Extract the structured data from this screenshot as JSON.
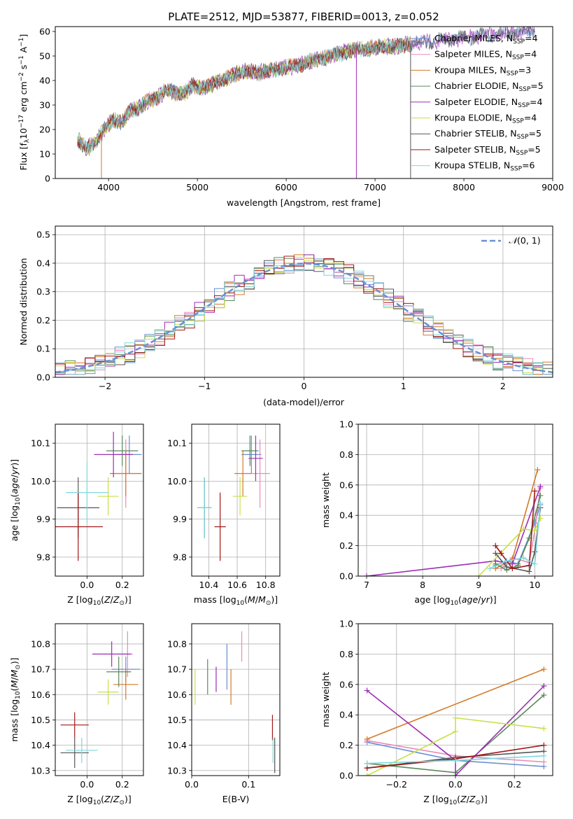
{
  "figure_title": "PLATE=2512, MJD=53877, FIBERID=0013, z=0.052",
  "colors": [
    "#6a8fd4",
    "#e88bb8",
    "#d47a28",
    "#5a8a5a",
    "#9b2fb5",
    "#c8e04a",
    "#555555",
    "#a01818",
    "#7fd8de"
  ],
  "chart_data": [
    {
      "id": "spectrum",
      "type": "line",
      "xlabel": "wavelength [Angstrom, rest frame]",
      "ylabel": "Flux [f_λ10^-17 erg cm^-2 s^-1 A^-1]",
      "xlim": [
        3400,
        9000
      ],
      "ylim": [
        0,
        62
      ],
      "xticks": [
        4000,
        5000,
        6000,
        7000,
        8000,
        9000
      ],
      "yticks": [
        0,
        10,
        20,
        30,
        40,
        50,
        60
      ],
      "grid": false,
      "legend_placement": "right",
      "legend": [
        "Chabrier MILES, N_SSP=4",
        "Salpeter MILES, N_SSP=4",
        "Kroupa MILES, N_SSP=3",
        "Chabrier ELODIE, N_SSP=5",
        "Salpeter ELODIE, N_SSP=4",
        "Kroupa ELODIE, N_SSP=4",
        "Chabrier STELIB, N_SSP=5",
        "Salpeter STELIB, N_SSP=5",
        "Kroupa STELIB, N_SSP=6"
      ],
      "continuum_x": [
        3650,
        3750,
        3850,
        3950,
        4050,
        4150,
        4250,
        4350,
        4450,
        4550,
        4650,
        4750,
        4850,
        4950,
        5050,
        5150,
        5250,
        5350,
        5500,
        5650,
        5800,
        5950,
        6100,
        6300,
        6500,
        6700,
        6900,
        7100,
        7250,
        7400
      ],
      "continuum_y": [
        16,
        12,
        15,
        20,
        24,
        23,
        28,
        29,
        32,
        33,
        36,
        35,
        35,
        38,
        37,
        38,
        40,
        41,
        44,
        43,
        44,
        45,
        46,
        48,
        50,
        52,
        53,
        54,
        54,
        55
      ],
      "dropouts": [
        {
          "x": 3920,
          "ymin": 0
        },
        {
          "x": 6790,
          "ymin": 0
        },
        {
          "x": 7400,
          "ymin": 0
        }
      ]
    },
    {
      "id": "residuals",
      "type": "histogram",
      "xlabel": "(data-model)/error",
      "ylabel": "Normed distribution",
      "xlim": [
        -2.5,
        2.5
      ],
      "ylim": [
        0,
        0.53
      ],
      "xticks": [
        -2,
        -1,
        0,
        1,
        2
      ],
      "yticks": [
        0.0,
        0.1,
        0.2,
        0.3,
        0.4,
        0.5
      ],
      "grid": true,
      "legend": [
        "N(0,1)"
      ],
      "legend_placement": "top-right",
      "bin_width": 0.1
    },
    {
      "id": "age_vs_Z",
      "type": "scatter",
      "xlabel": "Z [log10(Z/Z⊙)]",
      "ylabel": "age  [log10(age/yr)]",
      "xlim": [
        -0.18,
        0.32
      ],
      "ylim": [
        9.75,
        10.15
      ],
      "xticks": [
        0.0,
        0.2
      ],
      "yticks": [
        9.8,
        9.9,
        10.0,
        10.1
      ],
      "grid": true,
      "points": [
        {
          "x": 0.24,
          "xerr": 0.07,
          "y": 10.07,
          "yerr": 0.05
        },
        {
          "x": 0.22,
          "xerr": 0.09,
          "y": 10.02,
          "yerr": 0.09
        },
        {
          "x": 0.22,
          "xerr": 0.09,
          "y": 10.02,
          "yerr": 0.06
        },
        {
          "x": 0.2,
          "xerr": 0.09,
          "y": 10.08,
          "yerr": 0.04
        },
        {
          "x": 0.15,
          "xerr": 0.11,
          "y": 10.07,
          "yerr": 0.06
        },
        {
          "x": 0.12,
          "xerr": 0.06,
          "y": 9.96,
          "yerr": 0.05
        },
        {
          "x": -0.05,
          "xerr": 0.12,
          "y": 9.93,
          "yerr": 0.08
        },
        {
          "x": -0.05,
          "xerr": 0.14,
          "y": 9.88,
          "yerr": 0.09
        },
        {
          "x": 0.0,
          "xerr": 0.12,
          "y": 9.97,
          "yerr": 0.08
        }
      ]
    },
    {
      "id": "age_vs_mass",
      "type": "scatter",
      "xlabel": "mass [log10(M/M⊙)]",
      "ylabel": "",
      "xlim": [
        10.28,
        10.9
      ],
      "ylim": [
        9.75,
        10.15
      ],
      "xticks": [
        10.4,
        10.6,
        10.8
      ],
      "yticks": [
        9.8,
        9.9,
        10.0,
        10.1
      ],
      "grid": true,
      "points": [
        {
          "x": 10.7,
          "xerr": 0.07,
          "y": 10.07,
          "yerr": 0.05
        },
        {
          "x": 10.76,
          "xerr": 0.07,
          "y": 10.02,
          "yerr": 0.09
        },
        {
          "x": 10.64,
          "xerr": 0.06,
          "y": 10.02,
          "yerr": 0.06
        },
        {
          "x": 10.69,
          "xerr": 0.06,
          "y": 10.08,
          "yerr": 0.04
        },
        {
          "x": 10.73,
          "xerr": 0.05,
          "y": 10.06,
          "yerr": 0.06
        },
        {
          "x": 10.62,
          "xerr": 0.05,
          "y": 9.96,
          "yerr": 0.05
        },
        {
          "x": 10.37,
          "xerr": 0.05,
          "y": 9.93,
          "yerr": 0.08
        },
        {
          "x": 10.48,
          "xerr": 0.04,
          "y": 9.88,
          "yerr": 0.09
        },
        {
          "x": 10.37,
          "xerr": 0.05,
          "y": 9.93,
          "yerr": 0.08
        }
      ]
    },
    {
      "id": "massweight_vs_age",
      "type": "line",
      "xlabel": "age  [log10(age/yr)]",
      "ylabel": "mass weight",
      "xlim": [
        6.85,
        10.32
      ],
      "ylim": [
        0,
        1.0
      ],
      "xticks": [
        7,
        8,
        9,
        10
      ],
      "yticks": [
        0.0,
        0.2,
        0.4,
        0.6,
        0.8,
        1.0
      ],
      "grid": true,
      "series": [
        {
          "x": [
            9.3,
            9.5,
            9.7,
            10.0,
            10.1
          ],
          "y": [
            0.07,
            0.1,
            0.08,
            0.35,
            0.47
          ]
        },
        {
          "x": [
            9.4,
            9.6,
            9.9,
            10.0,
            10.1
          ],
          "y": [
            0.05,
            0.12,
            0.09,
            0.3,
            0.58
          ]
        },
        {
          "x": [
            9.3,
            9.6,
            10.05
          ],
          "y": [
            0.05,
            0.11,
            0.7
          ]
        },
        {
          "x": [
            9.3,
            9.5,
            9.7,
            9.9,
            10.1
          ],
          "y": [
            0.08,
            0.04,
            0.07,
            0.25,
            0.53
          ]
        },
        {
          "x": [
            7.0,
            9.3,
            9.6,
            10.1
          ],
          "y": [
            0.0,
            0.1,
            0.08,
            0.59
          ]
        },
        {
          "x": [
            9.0,
            9.8,
            10.0,
            10.1
          ],
          "y": [
            0.0,
            0.31,
            0.3,
            0.38
          ]
        },
        {
          "x": [
            9.3,
            9.5,
            9.9,
            10.0,
            10.1
          ],
          "y": [
            0.15,
            0.06,
            0.03,
            0.16,
            0.45
          ]
        },
        {
          "x": [
            9.3,
            9.4,
            9.6,
            9.9,
            10.0
          ],
          "y": [
            0.2,
            0.15,
            0.05,
            0.07,
            0.56
          ]
        },
        {
          "x": [
            9.2,
            9.5,
            9.8,
            10.0,
            10.1
          ],
          "y": [
            0.05,
            0.1,
            0.12,
            0.08,
            0.48
          ]
        }
      ]
    },
    {
      "id": "mass_vs_Z",
      "type": "scatter",
      "xlabel": "Z [log10(Z/Z⊙)]",
      "ylabel": "mass [log10(M/M⊙)]",
      "xlim": [
        -0.18,
        0.32
      ],
      "ylim": [
        10.28,
        10.88
      ],
      "xticks": [
        0.0,
        0.2
      ],
      "yticks": [
        10.3,
        10.4,
        10.5,
        10.6,
        10.7,
        10.8
      ],
      "grid": true,
      "points": [
        {
          "x": 0.22,
          "xerr": 0.08,
          "y": 10.7,
          "yerr": 0.05
        },
        {
          "x": 0.23,
          "xerr": 0.03,
          "y": 10.76,
          "yerr": 0.09
        },
        {
          "x": 0.22,
          "xerr": 0.07,
          "y": 10.64,
          "yerr": 0.06
        },
        {
          "x": 0.18,
          "xerr": 0.07,
          "y": 10.69,
          "yerr": 0.06
        },
        {
          "x": 0.14,
          "xerr": 0.11,
          "y": 10.76,
          "yerr": 0.05
        },
        {
          "x": 0.12,
          "xerr": 0.06,
          "y": 10.61,
          "yerr": 0.05
        },
        {
          "x": -0.07,
          "xerr": 0.08,
          "y": 10.37,
          "yerr": 0.06
        },
        {
          "x": -0.07,
          "xerr": 0.08,
          "y": 10.48,
          "yerr": 0.05
        },
        {
          "x": -0.03,
          "xerr": 0.09,
          "y": 10.38,
          "yerr": 0.05
        }
      ]
    },
    {
      "id": "mass_vs_EBV",
      "type": "scatter",
      "xlabel": "E(B-V)",
      "ylabel": "",
      "xlim": [
        0.0,
        0.155
      ],
      "ylim": [
        10.28,
        10.88
      ],
      "xticks": [
        0.0,
        0.1
      ],
      "yticks": [
        10.3,
        10.4,
        10.5,
        10.6,
        10.7,
        10.8
      ],
      "grid": true,
      "points": [
        {
          "x": 0.062,
          "y": 10.71,
          "yerr": 0.09
        },
        {
          "x": 0.088,
          "y": 10.79,
          "yerr": 0.06
        },
        {
          "x": 0.069,
          "y": 10.63,
          "yerr": 0.07
        },
        {
          "x": 0.028,
          "y": 10.67,
          "yerr": 0.07
        },
        {
          "x": 0.043,
          "y": 10.66,
          "yerr": 0.05
        },
        {
          "x": 0.006,
          "y": 10.63,
          "yerr": 0.07
        },
        {
          "x": 0.146,
          "y": 10.36,
          "yerr": 0.07
        },
        {
          "x": 0.142,
          "y": 10.47,
          "yerr": 0.05
        },
        {
          "x": 0.143,
          "y": 10.38,
          "yerr": 0.05
        }
      ]
    },
    {
      "id": "massweight_vs_Z",
      "type": "line",
      "xlabel": "Z [log10(Z/Z⊙)]",
      "ylabel": "mass weight",
      "xlim": [
        -0.33,
        0.33
      ],
      "ylim": [
        0,
        1.0
      ],
      "xticks": [
        -0.2,
        0.0,
        0.2
      ],
      "yticks": [
        0.0,
        0.2,
        0.4,
        0.6,
        0.8,
        1.0
      ],
      "grid": true,
      "series": [
        {
          "x": [
            -0.3,
            0.0,
            0.3
          ],
          "y": [
            0.22,
            0.1,
            0.06
          ]
        },
        {
          "x": [
            -0.3,
            0.0,
            0.3
          ],
          "y": [
            0.23,
            0.13,
            0.09
          ]
        },
        {
          "x": [
            -0.3,
            0.3
          ],
          "y": [
            0.24,
            0.7
          ]
        },
        {
          "x": [
            -0.3,
            0.0,
            0.3
          ],
          "y": [
            0.08,
            0.02,
            0.53
          ]
        },
        {
          "x": [
            -0.3,
            0.0,
            0.0,
            0.3
          ],
          "y": [
            0.56,
            0.1,
            0.0,
            0.59
          ]
        },
        {
          "x": [
            -0.3,
            0.0,
            0.0,
            0.3
          ],
          "y": [
            0.0,
            0.29,
            0.38,
            0.31
          ]
        },
        {
          "x": [
            -0.3,
            0.0,
            0.3
          ],
          "y": [
            0.05,
            0.12,
            0.16
          ]
        },
        {
          "x": [
            -0.3,
            0.0,
            0.3
          ],
          "y": [
            0.05,
            0.11,
            0.2
          ]
        },
        {
          "x": [
            -0.3,
            0.0,
            0.3
          ],
          "y": [
            0.08,
            0.1,
            0.13
          ]
        }
      ]
    }
  ]
}
